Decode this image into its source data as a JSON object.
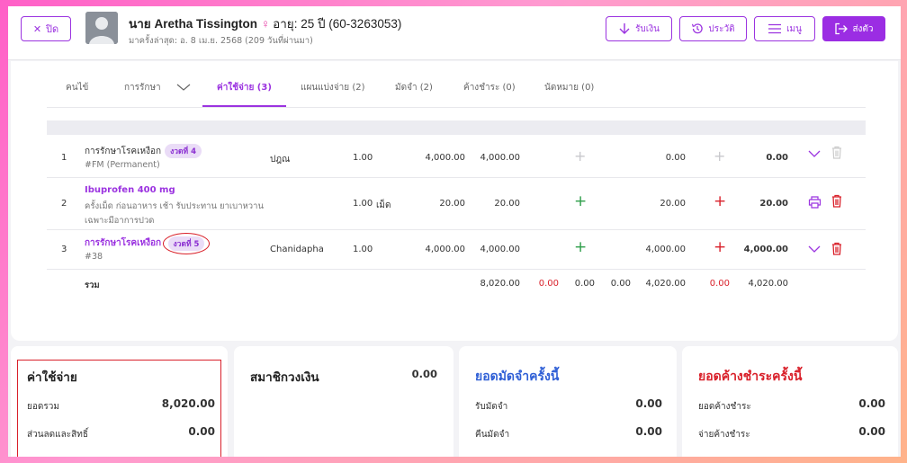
{
  "header": {
    "close_label": "ปิด",
    "patient_name": "นาย Aretha Tissington",
    "gender_symbol": "♀",
    "age_code": "อายุ: 25 ปี  (60-3263053)",
    "last_visit": "มาครั้งล่าสุด: อ. 8 เม.ย. 2568 (209 วันที่ผ่านมา)",
    "buttons": {
      "receive": "รับเงิน",
      "history": "ประวัติ",
      "menu": "เมนู",
      "send_queue": "ส่งตัว"
    }
  },
  "tabs": [
    {
      "label": "คนไข้"
    },
    {
      "label": "การรักษา"
    },
    {
      "label": "ค่าใช้จ่าย (3)"
    },
    {
      "label": "แผนแบ่งจ่าย (2)"
    },
    {
      "label": "มัดจำ (2)"
    },
    {
      "label": "ค้างชำระ (0)"
    },
    {
      "label": "นัดหมาย (0)"
    }
  ],
  "rows": [
    {
      "no": "1",
      "name": "การรักษาโรคเหงือก",
      "badge": "งวดที่ 4",
      "sub": "#FM (Permanent)",
      "doctor": "ปฎณ",
      "qty": "1.00",
      "unit": "",
      "price": "4,000.00",
      "amount": "4,000.00",
      "paid": "0.00",
      "total": "0.00"
    },
    {
      "no": "2",
      "name": "Ibuprofen 400 mg",
      "sub1": "ครั้งเม็ด ก่อนอาหาร เช้า รับประทาน ยาเบาหวาน",
      "sub2": "เฉพาะมีอาการปวด",
      "qty": "1.00",
      "unit": "เม็ด",
      "price": "20.00",
      "amount": "20.00",
      "paid": "20.00",
      "total": "20.00"
    },
    {
      "no": "3",
      "name": "การรักษาโรคเหงือก",
      "badge": "งวดที่ 5",
      "sub": "#38",
      "doctor": "Chanidapha",
      "qty": "1.00",
      "price": "4,000.00",
      "amount": "4,000.00",
      "paid": "4,000.00",
      "total": "4,000.00"
    }
  ],
  "totals": {
    "label": "รวม",
    "amount": "8,020.00",
    "discount": "0.00",
    "c1": "0.00",
    "c2": "0.00",
    "paid": "4,020.00",
    "red2": "0.00",
    "total": "4,020.00"
  },
  "summary": {
    "expenses": {
      "title": "ค่าใช้จ่าย",
      "total_label": "ยอดรวม",
      "total_value": "8,020.00",
      "discount_label": "ส่วนลดและสิทธิ์",
      "discount_value": "0.00"
    },
    "wallet": {
      "title": "สมาชิกวงเงิน",
      "value": "0.00"
    },
    "deposit": {
      "title": "ยอดมัดจำครั้งนี้",
      "receive_label": "รับมัดจำ",
      "receive_value": "0.00",
      "return_label": "คืนมัดจำ",
      "return_value": "0.00"
    },
    "outstanding": {
      "title": "ยอดค้างชำระครั้งนี้",
      "owed_label": "ยอดค้างชำระ",
      "owed_value": "0.00",
      "pay_label": "จ่ายค้างชำระ",
      "pay_value": "0.00"
    }
  },
  "colors": {
    "accent": "#9b33e0",
    "deposit_title": "#2f5fd6",
    "outstanding_title": "#d9202a",
    "green": "#2e9e4a"
  }
}
